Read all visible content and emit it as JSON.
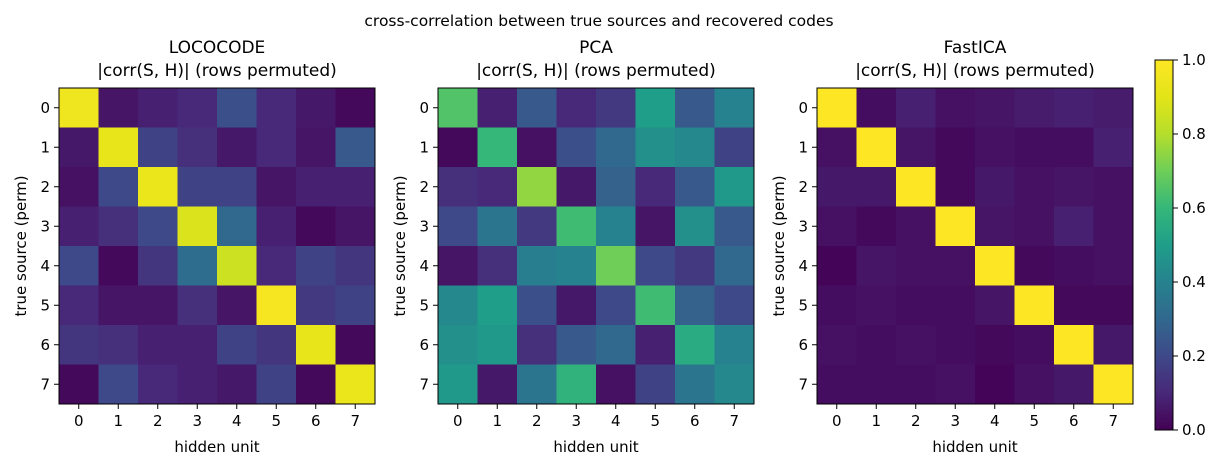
{
  "suptitle": "cross-correlation between true sources and recovered codes",
  "colorbar": {
    "min": 0.0,
    "max": 1.0,
    "ticks": [
      "0.0",
      "0.2",
      "0.4",
      "0.6",
      "0.8",
      "1.0"
    ],
    "colormap": "viridis"
  },
  "chart_data": [
    {
      "type": "heatmap",
      "title": "LOCOCODE",
      "subtitle": "|corr(S, H)| (rows permuted)",
      "xlabel": "hidden unit",
      "ylabel": "true source (perm)",
      "x_categories": [
        "0",
        "1",
        "2",
        "3",
        "4",
        "5",
        "6",
        "7"
      ],
      "y_categories": [
        "0",
        "1",
        "2",
        "3",
        "4",
        "5",
        "6",
        "7"
      ],
      "values": [
        [
          0.95,
          0.05,
          0.08,
          0.1,
          0.22,
          0.1,
          0.06,
          0.02
        ],
        [
          0.06,
          0.92,
          0.18,
          0.12,
          0.06,
          0.1,
          0.05,
          0.25
        ],
        [
          0.04,
          0.2,
          0.93,
          0.18,
          0.18,
          0.05,
          0.08,
          0.08
        ],
        [
          0.08,
          0.12,
          0.2,
          0.88,
          0.3,
          0.08,
          0.02,
          0.05
        ],
        [
          0.2,
          0.02,
          0.14,
          0.32,
          0.85,
          0.1,
          0.18,
          0.14
        ],
        [
          0.1,
          0.05,
          0.05,
          0.12,
          0.05,
          0.97,
          0.15,
          0.18
        ],
        [
          0.14,
          0.12,
          0.08,
          0.08,
          0.18,
          0.14,
          0.92,
          0.02
        ],
        [
          0.02,
          0.2,
          0.1,
          0.08,
          0.06,
          0.18,
          0.02,
          0.93
        ]
      ]
    },
    {
      "type": "heatmap",
      "title": "PCA",
      "subtitle": "|corr(S, H)| (rows permuted)",
      "xlabel": "hidden unit",
      "ylabel": "true source (perm)",
      "x_categories": [
        "0",
        "1",
        "2",
        "3",
        "4",
        "5",
        "6",
        "7"
      ],
      "y_categories": [
        "0",
        "1",
        "2",
        "3",
        "4",
        "5",
        "6",
        "7"
      ],
      "values": [
        [
          0.65,
          0.08,
          0.25,
          0.1,
          0.15,
          0.5,
          0.25,
          0.4
        ],
        [
          0.02,
          0.6,
          0.04,
          0.22,
          0.3,
          0.45,
          0.42,
          0.18
        ],
        [
          0.12,
          0.1,
          0.75,
          0.06,
          0.28,
          0.1,
          0.25,
          0.48
        ],
        [
          0.2,
          0.35,
          0.15,
          0.62,
          0.4,
          0.05,
          0.45,
          0.25
        ],
        [
          0.05,
          0.12,
          0.38,
          0.4,
          0.7,
          0.2,
          0.15,
          0.3
        ],
        [
          0.42,
          0.5,
          0.22,
          0.06,
          0.2,
          0.62,
          0.28,
          0.2
        ],
        [
          0.45,
          0.48,
          0.12,
          0.25,
          0.3,
          0.08,
          0.55,
          0.4
        ],
        [
          0.48,
          0.06,
          0.35,
          0.58,
          0.04,
          0.18,
          0.35,
          0.42
        ]
      ]
    },
    {
      "type": "heatmap",
      "title": "FastICA",
      "subtitle": "|corr(S, H)| (rows permuted)",
      "xlabel": "hidden unit",
      "ylabel": "true source (perm)",
      "x_categories": [
        "0",
        "1",
        "2",
        "3",
        "4",
        "5",
        "6",
        "7"
      ],
      "y_categories": [
        "0",
        "1",
        "2",
        "3",
        "4",
        "5",
        "6",
        "7"
      ],
      "values": [
        [
          1.0,
          0.03,
          0.08,
          0.04,
          0.05,
          0.07,
          0.08,
          0.07
        ],
        [
          0.04,
          1.0,
          0.05,
          0.02,
          0.04,
          0.03,
          0.03,
          0.08
        ],
        [
          0.06,
          0.06,
          1.0,
          0.02,
          0.06,
          0.04,
          0.05,
          0.04
        ],
        [
          0.04,
          0.02,
          0.04,
          1.0,
          0.05,
          0.04,
          0.08,
          0.04
        ],
        [
          0.01,
          0.05,
          0.04,
          0.04,
          1.0,
          0.02,
          0.03,
          0.04
        ],
        [
          0.03,
          0.04,
          0.03,
          0.03,
          0.05,
          1.0,
          0.02,
          0.02
        ],
        [
          0.04,
          0.03,
          0.04,
          0.03,
          0.02,
          0.03,
          1.0,
          0.06
        ],
        [
          0.03,
          0.03,
          0.03,
          0.04,
          0.01,
          0.04,
          0.06,
          1.0
        ]
      ]
    }
  ]
}
